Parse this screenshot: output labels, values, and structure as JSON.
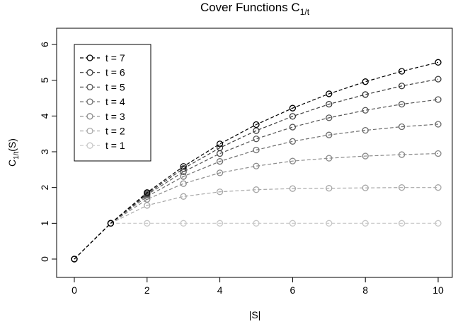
{
  "chart_data": {
    "type": "line",
    "title": {
      "main": "Cover Functions C",
      "sub": "1/t"
    },
    "xlabel": "|S|",
    "ylabel": {
      "main": "C",
      "sub": "1/t",
      "rest": "(S)"
    },
    "x": [
      0,
      1,
      2,
      3,
      4,
      5,
      6,
      7,
      8,
      9,
      10
    ],
    "series": [
      {
        "name": "t = 7",
        "color": "#000000",
        "values": [
          0,
          1,
          1.86,
          2.59,
          3.22,
          3.76,
          4.22,
          4.62,
          4.96,
          5.25,
          5.5
        ]
      },
      {
        "name": "t = 6",
        "color": "#3a3a3a",
        "values": [
          0,
          1,
          1.83,
          2.53,
          3.11,
          3.59,
          3.99,
          4.33,
          4.6,
          4.84,
          5.03
        ]
      },
      {
        "name": "t = 5",
        "color": "#555555",
        "values": [
          0,
          1,
          1.8,
          2.44,
          2.95,
          3.36,
          3.69,
          3.95,
          4.16,
          4.33,
          4.46
        ]
      },
      {
        "name": "t = 4",
        "color": "#6e6e6e",
        "values": [
          0,
          1,
          1.75,
          2.31,
          2.73,
          3.05,
          3.29,
          3.47,
          3.6,
          3.7,
          3.77
        ]
      },
      {
        "name": "t = 3",
        "color": "#8a8a8a",
        "values": [
          0,
          1,
          1.67,
          2.11,
          2.41,
          2.6,
          2.74,
          2.82,
          2.88,
          2.92,
          2.95
        ]
      },
      {
        "name": "t = 2",
        "color": "#a8a8a8",
        "values": [
          0,
          1,
          1.5,
          1.75,
          1.88,
          1.94,
          1.97,
          1.98,
          1.99,
          2,
          2
        ]
      },
      {
        "name": "t = 1",
        "color": "#c8c8c8",
        "values": [
          0,
          1,
          1,
          1,
          1,
          1,
          1,
          1,
          1,
          1,
          1
        ]
      }
    ],
    "xlim": [
      0,
      10
    ],
    "xticks": [
      0,
      2,
      4,
      6,
      8,
      10
    ],
    "ylim": [
      0,
      6
    ],
    "yticks": [
      0,
      1,
      2,
      3,
      4,
      5,
      6
    ],
    "legend": "top-left"
  }
}
